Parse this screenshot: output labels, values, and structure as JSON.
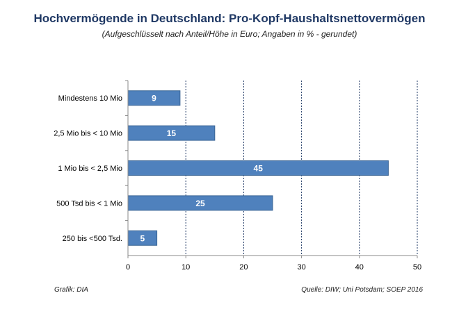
{
  "chart_data": {
    "type": "bar",
    "orientation": "horizontal",
    "title": "Hochvermögende in Deutschland: Pro-Kopf-Haushaltsnettovermögen",
    "subtitle": "(Aufgeschlüsselt nach Anteil/Höhe in Euro; Angaben in % - gerundet)",
    "categories": [
      "Mindestens 10 Mio",
      "2,5 Mio bis < 10 Mio",
      "1 Mio bis < 2,5 Mio",
      "500 Tsd bis < 1 Mio",
      "250 bis <500 Tsd."
    ],
    "values": [
      9,
      15,
      45,
      25,
      5
    ],
    "value_labels": [
      "9",
      "15",
      "45",
      "25",
      "5"
    ],
    "xlim": [
      0,
      50
    ],
    "xticks": [
      "0",
      "10",
      "20",
      "30",
      "40",
      "50"
    ],
    "grid": "vertical dotted",
    "bar_color": "#4f81bd"
  },
  "footer": {
    "left": "Grafik: DIA",
    "right": "Quelle: DIW; Uni Potsdam; SOEP 2016"
  }
}
